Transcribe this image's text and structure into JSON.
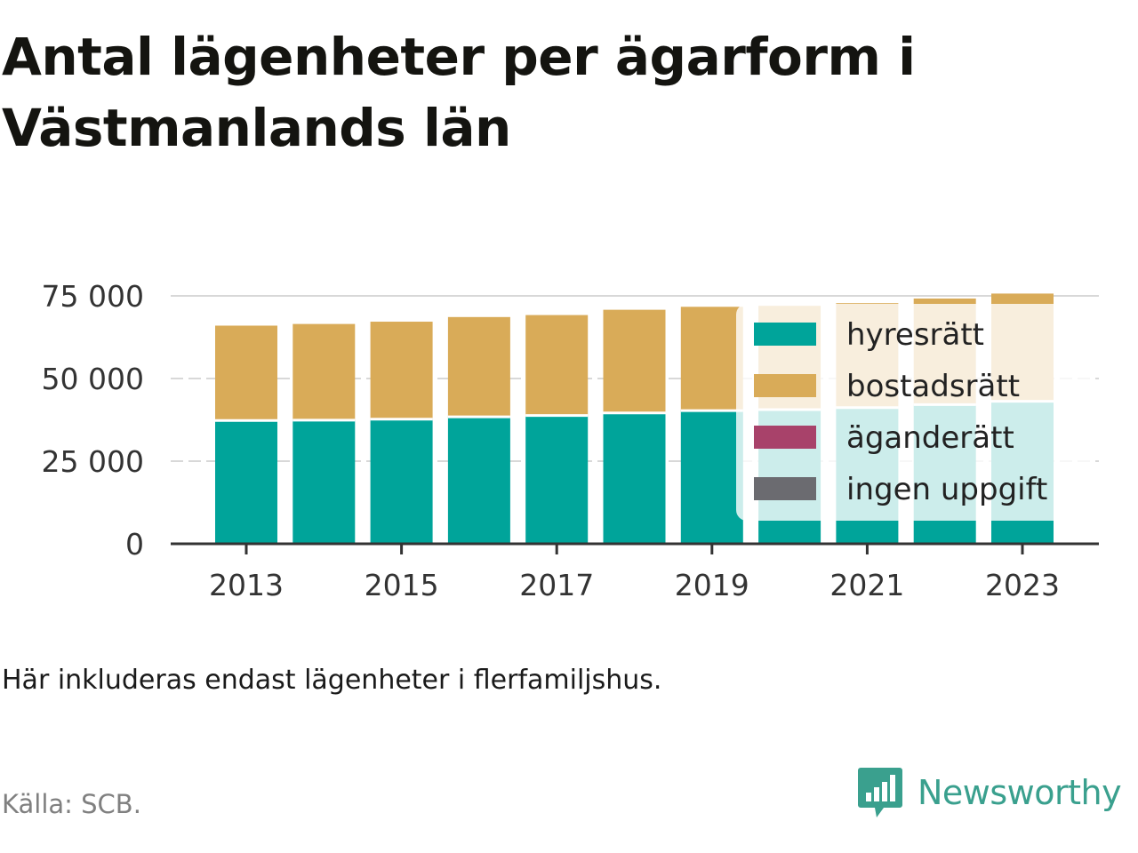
{
  "title": "Antal lägenheter per ägarform i Västmanlands län",
  "note": "Här inkluderas endast lägenheter i flerfamiljshus.",
  "source": "Källa: SCB.",
  "brand": {
    "name": "Newsworthy",
    "logo_icon": "bar-chart-speech-bubble-icon",
    "color": "#3aa08e"
  },
  "chart_data": {
    "type": "bar",
    "stacked": true,
    "categories": [
      "2013",
      "2014",
      "2015",
      "2016",
      "2017",
      "2018",
      "2019",
      "2020",
      "2021",
      "2022",
      "2023"
    ],
    "x_tick_labels": [
      "2013",
      "2015",
      "2017",
      "2019",
      "2021",
      "2023"
    ],
    "ylim": [
      0,
      75000
    ],
    "y_ticks": [
      0,
      25000,
      50000,
      75000
    ],
    "y_tick_labels": [
      "0",
      "25 000",
      "50 000",
      "75 000"
    ],
    "grid": true,
    "legend_position": "top-right",
    "series": [
      {
        "name": "hyresrätt",
        "color": "#00a49a",
        "values": [
          37300,
          37400,
          37700,
          38400,
          38800,
          39600,
          40300,
          40600,
          41200,
          42100,
          43100
        ]
      },
      {
        "name": "bostadsrätt",
        "color": "#d9ab58",
        "values": [
          28700,
          29100,
          29500,
          30200,
          30400,
          31200,
          31400,
          31400,
          31600,
          32100,
          32600
        ]
      },
      {
        "name": "äganderätt",
        "color": "#a8426a",
        "values": [
          0,
          0,
          0,
          0,
          0,
          0,
          0,
          0,
          0,
          0,
          0
        ]
      },
      {
        "name": "ingen uppgift",
        "color": "#6b6b70",
        "values": [
          0,
          0,
          0,
          0,
          0,
          0,
          0,
          0,
          0,
          0,
          0
        ]
      }
    ]
  }
}
